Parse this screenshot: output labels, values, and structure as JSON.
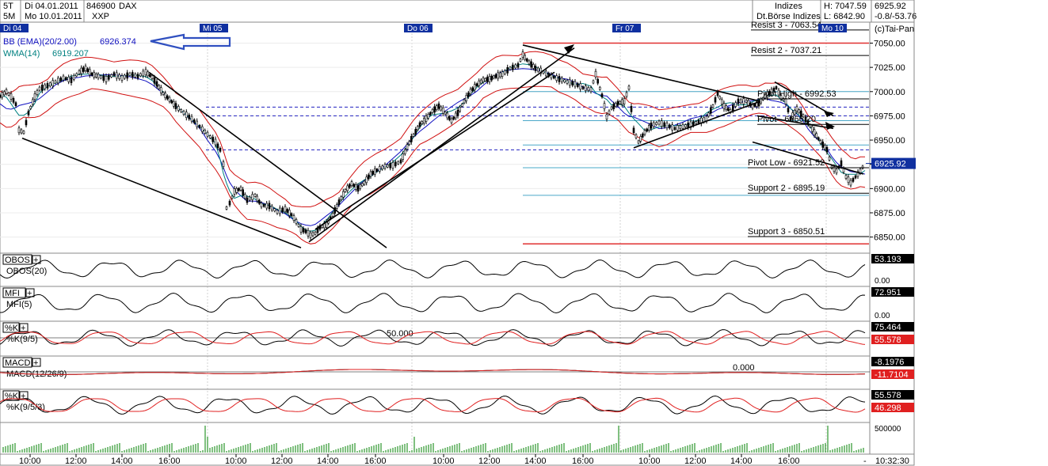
{
  "header": {
    "rows": [
      {
        "tf": "5T",
        "date": "Di 04.01.2011"
      },
      {
        "tf": "5M",
        "date": "Mo 10.01.2011"
      }
    ],
    "wkn": "846900",
    "name": "DAX",
    "exchange": "XXP",
    "market": "Indizes",
    "market_sub": "Dt.Börse Indizes",
    "high": "H: 7047.59",
    "low": "L: 6842.90",
    "last": "6925.92",
    "change": "-0.8/-53.76",
    "copyright": "(c)Tai-Pan"
  },
  "day_labels": [
    {
      "label": "Di 04",
      "x": 0
    },
    {
      "label": "Mi 05",
      "x": 252
    },
    {
      "label": "Do 06",
      "x": 510
    },
    {
      "label": "Fr 07",
      "x": 773
    },
    {
      "label": "Mo 10",
      "x": 1033
    }
  ],
  "time_axis": {
    "labels": [
      "10:00",
      "12:00",
      "14:00",
      "16:00",
      "10:00",
      "12:00",
      "14:00",
      "16:00",
      "10:00",
      "12:00",
      "14:00",
      "16:00",
      "10:00",
      "12:00",
      "14:00",
      "16:00"
    ],
    "clock": "10:32:30",
    "dash": "-"
  },
  "chart_data": {
    "type": "line",
    "title": "",
    "symbol": "DAX",
    "y_axis": {
      "ticks": [
        6850,
        6875,
        6900,
        6925,
        6950,
        6975,
        7000,
        7025,
        7050
      ],
      "ylim": [
        6835,
        7070
      ]
    },
    "last_price": 6925.92,
    "indicators": [
      {
        "name": "BB (EMA)(20/2.00)",
        "value": "6926.374",
        "color": "#1010c0"
      },
      {
        "name": "WMA(14)",
        "value": "6919.207",
        "color": "#008080"
      }
    ],
    "levels": [
      {
        "label": "Resist 3 - 7063.54",
        "value": 7063.54,
        "color": "#000000"
      },
      {
        "label": "Resist 2 - 7037.21",
        "value": 7037.21,
        "color": "#000000"
      },
      {
        "label": "Pivot High - 6992.53",
        "value": 6992.53,
        "color": "#000000"
      },
      {
        "label": "Pivot - 6966.20",
        "value": 6966.2,
        "color": "#000000"
      },
      {
        "label": "Pivot Low - 6921.52",
        "value": 6921.52,
        "color": "#000000"
      },
      {
        "label": "Support 2 - 6895.19",
        "value": 6895.19,
        "color": "#000000"
      },
      {
        "label": "Support 3 - 6850.51",
        "value": 6850.51,
        "color": "#000000"
      }
    ],
    "horizontal_lines": [
      {
        "value": 7050,
        "color": "#e03030",
        "style": "solid"
      },
      {
        "value": 7000,
        "color": "#4aa8c8",
        "style": "solid"
      },
      {
        "value": 6984,
        "color": "#2020c0",
        "style": "dashed"
      },
      {
        "value": 6975,
        "color": "#2020c0",
        "style": "dashed"
      },
      {
        "value": 6970,
        "color": "#4aa8c8",
        "style": "solid"
      },
      {
        "value": 6945,
        "color": "#4aa8c8",
        "style": "solid"
      },
      {
        "value": 6940,
        "color": "#2020c0",
        "style": "dashed"
      },
      {
        "value": 6921.52,
        "color": "#4aa8c8",
        "style": "solid"
      },
      {
        "value": 6893,
        "color": "#4aa8c8",
        "style": "solid"
      },
      {
        "value": 6843,
        "color": "#e03030",
        "style": "solid"
      }
    ],
    "price_path": [
      [
        0,
        6995
      ],
      [
        8,
        7000
      ],
      [
        14,
        6995
      ],
      [
        20,
        6987
      ],
      [
        24,
        6960
      ],
      [
        30,
        6958
      ],
      [
        36,
        6978
      ],
      [
        44,
        6995
      ],
      [
        50,
        7003
      ],
      [
        60,
        7006
      ],
      [
        70,
        7010
      ],
      [
        80,
        7014
      ],
      [
        90,
        7012
      ],
      [
        100,
        7020
      ],
      [
        108,
        7024
      ],
      [
        116,
        7018
      ],
      [
        124,
        7016
      ],
      [
        134,
        7013
      ],
      [
        144,
        7018
      ],
      [
        154,
        7014
      ],
      [
        164,
        7018
      ],
      [
        174,
        7016
      ],
      [
        184,
        7020
      ],
      [
        192,
        7015
      ],
      [
        198,
        7008
      ],
      [
        206,
        6998
      ],
      [
        214,
        6992
      ],
      [
        222,
        6985
      ],
      [
        232,
        6978
      ],
      [
        242,
        6972
      ],
      [
        252,
        6964
      ],
      [
        262,
        6956
      ],
      [
        272,
        6948
      ],
      [
        278,
        6940
      ],
      [
        282,
        6925
      ],
      [
        286,
        6880
      ],
      [
        290,
        6885
      ],
      [
        296,
        6897
      ],
      [
        304,
        6900
      ],
      [
        312,
        6888
      ],
      [
        322,
        6893
      ],
      [
        330,
        6883
      ],
      [
        340,
        6882
      ],
      [
        350,
        6876
      ],
      [
        360,
        6879
      ],
      [
        368,
        6873
      ],
      [
        374,
        6866
      ],
      [
        380,
        6858
      ],
      [
        386,
        6856
      ],
      [
        392,
        6852
      ],
      [
        398,
        6854
      ],
      [
        404,
        6860
      ],
      [
        412,
        6863
      ],
      [
        420,
        6873
      ],
      [
        428,
        6886
      ],
      [
        436,
        6898
      ],
      [
        444,
        6905
      ],
      [
        452,
        6900
      ],
      [
        460,
        6906
      ],
      [
        468,
        6915
      ],
      [
        476,
        6919
      ],
      [
        486,
        6923
      ],
      [
        496,
        6924
      ],
      [
        506,
        6928
      ],
      [
        514,
        6943
      ],
      [
        522,
        6955
      ],
      [
        530,
        6966
      ],
      [
        538,
        6972
      ],
      [
        546,
        6980
      ],
      [
        554,
        6985
      ],
      [
        562,
        6978
      ],
      [
        570,
        6970
      ],
      [
        578,
        6978
      ],
      [
        586,
        6990
      ],
      [
        594,
        7000
      ],
      [
        602,
        7007
      ],
      [
        610,
        7012
      ],
      [
        618,
        7013
      ],
      [
        626,
        7016
      ],
      [
        634,
        7018
      ],
      [
        644,
        7024
      ],
      [
        654,
        7027
      ],
      [
        660,
        7038
      ],
      [
        668,
        7030
      ],
      [
        676,
        7024
      ],
      [
        686,
        7020
      ],
      [
        696,
        7016
      ],
      [
        706,
        7013
      ],
      [
        716,
        7010
      ],
      [
        726,
        7008
      ],
      [
        736,
        7004
      ],
      [
        746,
        7002
      ],
      [
        752,
        7018
      ],
      [
        760,
        6996
      ],
      [
        766,
        6974
      ],
      [
        772,
        6983
      ],
      [
        780,
        6988
      ],
      [
        788,
        6990
      ],
      [
        794,
        7004
      ],
      [
        800,
        6960
      ],
      [
        806,
        6948
      ],
      [
        814,
        6958
      ],
      [
        822,
        6965
      ],
      [
        832,
        6968
      ],
      [
        842,
        6965
      ],
      [
        852,
        6962
      ],
      [
        862,
        6964
      ],
      [
        872,
        6966
      ],
      [
        882,
        6969
      ],
      [
        892,
        6972
      ],
      [
        900,
        6985
      ],
      [
        906,
        6998
      ],
      [
        914,
        6985
      ],
      [
        922,
        6980
      ],
      [
        932,
        6990
      ],
      [
        942,
        6990
      ],
      [
        950,
        6985
      ],
      [
        958,
        6988
      ],
      [
        966,
        6995
      ],
      [
        974,
        7000
      ],
      [
        980,
        7004
      ],
      [
        986,
        6994
      ],
      [
        992,
        6990
      ],
      [
        998,
        6972
      ],
      [
        1006,
        6982
      ],
      [
        1014,
        6975
      ],
      [
        1020,
        6968
      ],
      [
        1028,
        6958
      ],
      [
        1036,
        6948
      ],
      [
        1044,
        6940
      ],
      [
        1050,
        6922
      ],
      [
        1056,
        6918
      ],
      [
        1062,
        6926
      ],
      [
        1068,
        6912
      ],
      [
        1074,
        6906
      ],
      [
        1080,
        6912
      ],
      [
        1086,
        6918
      ],
      [
        1092,
        6925.92
      ]
    ],
    "trendlines": [
      {
        "points": [
          [
            28,
            6952
          ],
          [
            380,
            6839
          ]
        ],
        "color": "#000"
      },
      {
        "points": [
          [
            188,
            7020
          ],
          [
            488,
            6839
          ]
        ],
        "color": "#000"
      },
      {
        "points": [
          [
            390,
            6845
          ],
          [
            725,
            7045
          ]
        ],
        "color": "#000"
      },
      {
        "points": [
          [
            398,
            6858
          ],
          [
            700,
            7020
          ]
        ],
        "color": "#000"
      },
      {
        "points": [
          [
            660,
            7048
          ],
          [
            960,
            6990
          ]
        ],
        "color": "#000"
      },
      {
        "points": [
          [
            800,
            6942
          ],
          [
            960,
            6990
          ]
        ],
        "color": "#000"
      },
      {
        "points": [
          [
            950,
            6948
          ],
          [
            1090,
            6915
          ]
        ],
        "color": "#000"
      },
      {
        "points": [
          [
            978,
            7010
          ],
          [
            1052,
            6975
          ]
        ],
        "color": "#000"
      },
      {
        "points": [
          [
            956,
            6975
          ],
          [
            1052,
            6962
          ]
        ],
        "color": "#000"
      }
    ],
    "volume": {
      "max_label": "500000"
    },
    "sub_panels": [
      {
        "tag": "OBOS",
        "name": "OBOS(20)",
        "scale_top": "100.00",
        "scale_bottom": "0.00",
        "readings": [
          {
            "value": "53.193",
            "color": "#000000"
          }
        ],
        "series_colors": [
          "#000000"
        ],
        "mid_label": "",
        "phase": 0.9,
        "amp": 9
      },
      {
        "tag": "MFI",
        "name": "MFI(5)",
        "scale_top": "100.00",
        "scale_bottom": "0.00",
        "readings": [
          {
            "value": "72.951",
            "color": "#000000"
          }
        ],
        "series_colors": [
          "#000000"
        ],
        "mid_label": "",
        "phase": 1.7,
        "amp": 10
      },
      {
        "tag": "%K",
        "name": "%K(9/5)",
        "scale_top": "",
        "scale_bottom": "",
        "readings": [
          {
            "value": "75.464",
            "color": "#000000"
          },
          {
            "value": "55.578",
            "color": "#e02020"
          }
        ],
        "series_colors": [
          "#000000",
          "#e02020"
        ],
        "mid_label": "50.000",
        "phase": 2.3,
        "amp": 8
      },
      {
        "tag": "MACD",
        "name": "MACD(12/26/9)",
        "scale_top": "",
        "scale_bottom": "",
        "readings": [
          {
            "value": "-8.1976",
            "color": "#000000"
          },
          {
            "value": "-11.7104",
            "color": "#e02020"
          }
        ],
        "series_colors": [
          "#000000",
          "#e02020"
        ],
        "mid_label": "0.000",
        "phase": 0.4,
        "amp": 4
      },
      {
        "tag": "%K",
        "name": "%K(9/5/3)",
        "scale_top": "",
        "scale_bottom": "",
        "readings": [
          {
            "value": "55.578",
            "color": "#000000"
          },
          {
            "value": "46.298",
            "color": "#e02020"
          }
        ],
        "series_colors": [
          "#000000",
          "#e02020"
        ],
        "mid_label": "",
        "phase": 3.1,
        "amp": 9
      }
    ]
  }
}
